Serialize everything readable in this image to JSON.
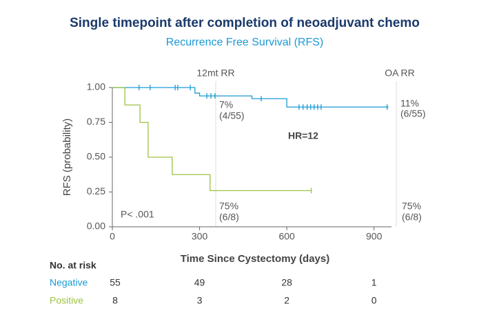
{
  "chart_data": {
    "type": "km",
    "title": "Single timepoint after completion of neoadjuvant chemo",
    "subtitle": "Recurrence Free Survival (RFS)",
    "x_label": "Time Since Cystectomy (days)",
    "y_label": "RFS (probability)",
    "xlim": [
      0,
      960
    ],
    "ylim": [
      0,
      1
    ],
    "xticks": [
      0,
      300,
      600,
      900
    ],
    "yticks": [
      {
        "value": 0,
        "label": "0.00"
      },
      {
        "value": 0.25,
        "label": "0.25"
      },
      {
        "value": 0.5,
        "label": "0.50"
      },
      {
        "value": 0.75,
        "label": "0.75"
      },
      {
        "value": 1,
        "label": "1.00"
      }
    ],
    "series": [
      {
        "name": "Negative",
        "color": "#1a9ad6",
        "x": [
          0,
          284,
          300,
          480,
          600,
          950
        ],
        "values": [
          1,
          0.96,
          0.94,
          0.92,
          0.86,
          0.86
        ],
        "censor_x": [
          92,
          130,
          216,
          225,
          268,
          325,
          339,
          353,
          512,
          642,
          656,
          670,
          682,
          694,
          706,
          718,
          945
        ],
        "censor_values": [
          1,
          1,
          1,
          1,
          1,
          0.94,
          0.94,
          0.94,
          0.92,
          0.86,
          0.86,
          0.86,
          0.86,
          0.86,
          0.86,
          0.86,
          0.86
        ]
      },
      {
        "name": "Positive",
        "color": "#9cc240",
        "x": [
          0,
          43,
          95,
          123,
          206,
          336,
          684
        ],
        "values": [
          1,
          0.875,
          0.75,
          0.5,
          0.375,
          0.26,
          0.26
        ],
        "censor_x": [
          684
        ],
        "censor_values": [
          0.26
        ]
      }
    ],
    "annotations": [
      "12mt RR",
      "OA RR",
      "7%",
      "(4/55)",
      "11%",
      "(6/55)",
      "HR=12",
      "P< .001",
      "75%",
      "(6/8)",
      "75%",
      "(6/8)"
    ],
    "at_risk": {
      "title": "No. at risk",
      "rows": [
        {
          "name": "Negative",
          "values": [
            55,
            49,
            28,
            1
          ]
        },
        {
          "name": "Positive",
          "values": [
            8,
            3,
            2,
            0
          ]
        }
      ]
    }
  }
}
